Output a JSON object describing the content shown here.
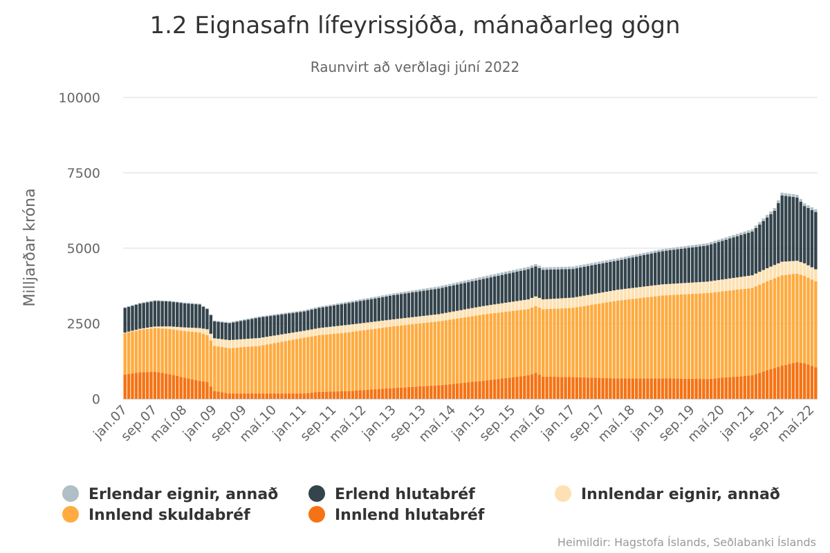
{
  "chart_data": {
    "type": "bar",
    "stacked": true,
    "title": "1.2 Eignasafn lífeyrissjóða, mánaðarleg gögn",
    "subtitle": "Raunvirt að verðlagi júní 2022",
    "ylabel": "Milljarðar króna",
    "xlabel": "",
    "ylim": [
      0,
      10000
    ],
    "yticks": [
      "0",
      "2500",
      "5000",
      "7500",
      "10000"
    ],
    "credits": "Heimildir: Hagstofa Íslands, Seðlabanki Íslands",
    "grid": true,
    "legend_position": "bottom",
    "x_tick_labels": [
      "jan.07",
      "sep.07",
      "maí.08",
      "jan.09",
      "sep.09",
      "maí.10",
      "jan.11",
      "sep.11",
      "maí.12",
      "jan.13",
      "sep.13",
      "maí.14",
      "jan.15",
      "sep.15",
      "maí.16",
      "jan.17",
      "sep.17",
      "maí.18",
      "jan.19",
      "sep.19",
      "maí.20",
      "jan.21",
      "sep.21",
      "maí.22"
    ],
    "series": [
      {
        "name": "Erlendar eignir, annað",
        "color": "#b0bec5",
        "anchor_values": [
          [
            0,
            20
          ],
          [
            24,
            30
          ],
          [
            48,
            40
          ],
          [
            72,
            60
          ],
          [
            96,
            80
          ],
          [
            120,
            80
          ],
          [
            144,
            70
          ],
          [
            168,
            80
          ],
          [
            175,
            90
          ],
          [
            185,
            90
          ]
        ]
      },
      {
        "name": "Erlend hlutabréf",
        "color": "#34444c",
        "anchor_values": [
          [
            0,
            820
          ],
          [
            8,
            850
          ],
          [
            16,
            800
          ],
          [
            20,
            780
          ],
          [
            24,
            560
          ],
          [
            28,
            560
          ],
          [
            36,
            680
          ],
          [
            48,
            640
          ],
          [
            60,
            720
          ],
          [
            72,
            800
          ],
          [
            84,
            850
          ],
          [
            96,
            900
          ],
          [
            108,
            1000
          ],
          [
            120,
            950
          ],
          [
            132,
            970
          ],
          [
            144,
            1100
          ],
          [
            156,
            1200
          ],
          [
            168,
            1450
          ],
          [
            174,
            1800
          ],
          [
            176,
            2200
          ],
          [
            180,
            2100
          ],
          [
            182,
            1900
          ],
          [
            185,
            1900
          ]
        ]
      },
      {
        "name": "Innlendar eignir, annað",
        "color": "#fde1b2",
        "anchor_values": [
          [
            0,
            20
          ],
          [
            8,
            50
          ],
          [
            16,
            120
          ],
          [
            20,
            150
          ],
          [
            24,
            250
          ],
          [
            28,
            270
          ],
          [
            36,
            260
          ],
          [
            48,
            230
          ],
          [
            60,
            250
          ],
          [
            72,
            230
          ],
          [
            84,
            240
          ],
          [
            96,
            280
          ],
          [
            108,
            320
          ],
          [
            120,
            340
          ],
          [
            132,
            360
          ],
          [
            144,
            370
          ],
          [
            156,
            380
          ],
          [
            168,
            420
          ],
          [
            176,
            450
          ],
          [
            185,
            400
          ]
        ]
      },
      {
        "name": "Innlend skuldabréf",
        "color": "#ffab40",
        "anchor_values": [
          [
            0,
            1370
          ],
          [
            8,
            1450
          ],
          [
            16,
            1550
          ],
          [
            20,
            1600
          ],
          [
            24,
            1500
          ],
          [
            28,
            1500
          ],
          [
            36,
            1580
          ],
          [
            48,
            1850
          ],
          [
            60,
            1950
          ],
          [
            72,
            2050
          ],
          [
            84,
            2120
          ],
          [
            96,
            2200
          ],
          [
            108,
            2200
          ],
          [
            120,
            2300
          ],
          [
            132,
            2580
          ],
          [
            144,
            2750
          ],
          [
            156,
            2850
          ],
          [
            168,
            2900
          ],
          [
            176,
            3000
          ],
          [
            185,
            2850
          ]
        ]
      },
      {
        "name": "Innlend hlutabréf",
        "color": "#f57314",
        "anchor_values": [
          [
            0,
            810
          ],
          [
            4,
            880
          ],
          [
            8,
            900
          ],
          [
            12,
            820
          ],
          [
            16,
            700
          ],
          [
            20,
            600
          ],
          [
            22,
            560
          ],
          [
            24,
            260
          ],
          [
            28,
            180
          ],
          [
            36,
            180
          ],
          [
            48,
            180
          ],
          [
            52,
            230
          ],
          [
            60,
            260
          ],
          [
            72,
            360
          ],
          [
            84,
            450
          ],
          [
            96,
            600
          ],
          [
            108,
            780
          ],
          [
            110,
            860
          ],
          [
            112,
            740
          ],
          [
            120,
            720
          ],
          [
            132,
            680
          ],
          [
            144,
            680
          ],
          [
            156,
            660
          ],
          [
            168,
            780
          ],
          [
            172,
            950
          ],
          [
            176,
            1100
          ],
          [
            180,
            1220
          ],
          [
            182,
            1180
          ],
          [
            185,
            1050
          ]
        ]
      }
    ]
  }
}
